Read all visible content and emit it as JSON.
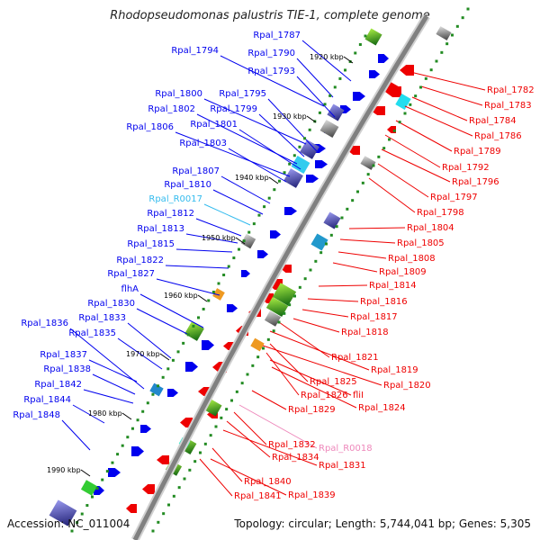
{
  "title": "Rhodopseudomonas palustris TIE-1, complete genome",
  "footer": {
    "accession": "Accession: NC_011004",
    "summary": "Topology: circular; Length: 5,744,041 bp; Genes: 5,305"
  },
  "scale_marks": [
    "1920 kbp",
    "1930 kbp",
    "1940 kbp",
    "1950 kbp",
    "1960 kbp",
    "1970 kbp",
    "1980 kbp",
    "1990 kbp"
  ],
  "left_labels": [
    "Rpal_1787",
    "Rpal_1794",
    "Rpal_1790",
    "Rpal_1793",
    "Rpal_1800",
    "Rpal_1795",
    "Rpal_1802",
    "Rpal_1799",
    "Rpal_1806",
    "Rpal_1801",
    "Rpal_1803",
    "Rpal_1807",
    "Rpal_1810",
    "Rpal_R0017",
    "Rpal_1812",
    "Rpal_1813",
    "Rpal_1815",
    "Rpal_1822",
    "Rpal_1827",
    "flhA",
    "Rpal_1830",
    "Rpal_1836",
    "Rpal_1833",
    "Rpal_1835",
    "Rpal_1837",
    "Rpal_1838",
    "Rpal_1842",
    "Rpal_1844",
    "Rpal_1848"
  ],
  "right_labels": [
    "Rpal_1782",
    "Rpal_1783",
    "Rpal_1784",
    "Rpal_1786",
    "Rpal_1789",
    "Rpal_1792",
    "Rpal_1796",
    "Rpal_1797",
    "Rpal_1798",
    "Rpal_1804",
    "Rpal_1805",
    "Rpal_1808",
    "Rpal_1809",
    "Rpal_1814",
    "Rpal_1816",
    "Rpal_1817",
    "Rpal_1818",
    "Rpal_1821",
    "Rpal_1819",
    "Rpal_1820",
    "Rpal_1825",
    "Rpal_1826",
    "fliI",
    "Rpal_1824",
    "Rpal_1829",
    "Rpal_1832",
    "Rpal_R0018",
    "Rpal_1834",
    "Rpal_1831",
    "Rpal_1840",
    "Rpal_1839",
    "Rpal_1841"
  ],
  "colors": {
    "forward": "#0000ee",
    "reverse": "#ee0000",
    "rna_forward": "#33bbee",
    "rna_reverse": "#ee88bb",
    "backbone": "#808080",
    "tick": "#228b22"
  }
}
